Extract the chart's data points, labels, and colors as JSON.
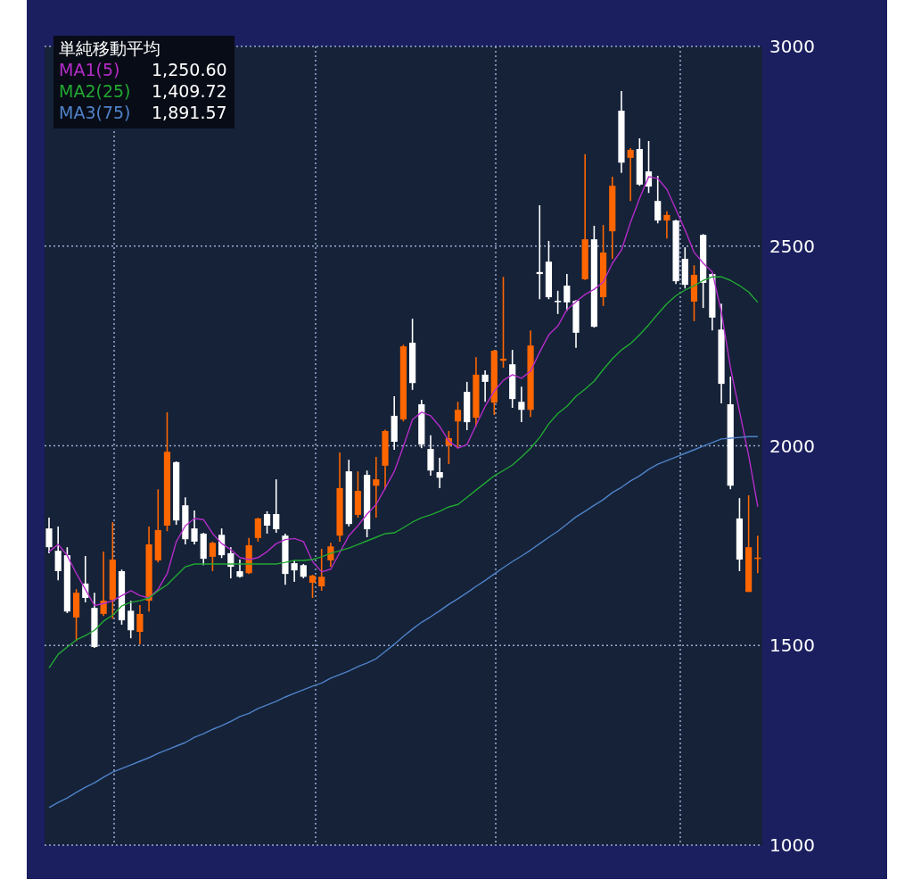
{
  "chart_data": {
    "type": "candlestick",
    "legend_title": "単純移動平均",
    "legend": "top left",
    "grid": true,
    "tick_labels": "y",
    "ylim": [
      1000,
      3000
    ],
    "yticks": [
      1000,
      1500,
      2000,
      2500,
      3000
    ],
    "annotations": [
      "1,250.60",
      "1,409.72",
      "1,891.57"
    ],
    "categories": [
      null,
      null,
      null,
      null,
      null,
      null,
      null,
      null,
      null,
      null,
      null,
      null,
      null,
      null,
      null,
      null,
      null,
      null,
      null,
      null,
      null,
      null,
      null,
      null,
      null,
      null,
      null,
      null,
      null,
      null,
      null,
      null,
      null,
      null,
      null,
      null,
      null,
      null,
      null,
      null,
      null,
      null,
      null,
      null,
      null,
      null,
      null,
      null,
      null,
      null,
      null,
      null,
      null,
      null,
      null,
      null,
      null,
      null,
      null,
      null,
      null,
      null,
      null,
      null,
      null,
      null,
      null,
      null,
      null,
      null,
      null,
      null,
      null,
      null,
      null,
      null,
      null,
      null,
      null
    ],
    "ohlc": [
      [
        1793,
        1820,
        1731,
        1746
      ],
      [
        1737,
        1798,
        1663,
        1686
      ],
      [
        1726,
        1746,
        1581,
        1585
      ],
      [
        1570,
        1641,
        1511,
        1632
      ],
      [
        1655,
        1724,
        1608,
        1619
      ],
      [
        1594,
        1632,
        1494,
        1496
      ],
      [
        1579,
        1735,
        1574,
        1612
      ],
      [
        1614,
        1809,
        1567,
        1715
      ],
      [
        1686,
        1690,
        1552,
        1563
      ],
      [
        1587,
        1612,
        1518,
        1538
      ],
      [
        1534,
        1601,
        1503,
        1579
      ],
      [
        1612,
        1798,
        1585,
        1753
      ],
      [
        1713,
        1891,
        1708,
        1789
      ],
      [
        1800,
        2084,
        1786,
        1985
      ],
      [
        1959,
        1961,
        1802,
        1813
      ],
      [
        1851,
        1871,
        1753,
        1766
      ],
      [
        1793,
        1838,
        1753,
        1760
      ],
      [
        1780,
        1782,
        1701,
        1717
      ],
      [
        1722,
        1760,
        1686,
        1757
      ],
      [
        1777,
        1793,
        1719,
        1726
      ],
      [
        1731,
        1746,
        1668,
        1697
      ],
      [
        1686,
        1715,
        1670,
        1672
      ],
      [
        1681,
        1769,
        1679,
        1751
      ],
      [
        1769,
        1820,
        1760,
        1818
      ],
      [
        1829,
        1836,
        1780,
        1800
      ],
      [
        1829,
        1916,
        1782,
        1791
      ],
      [
        1775,
        1780,
        1652,
        1679
      ],
      [
        1706,
        1713,
        1659,
        1688
      ],
      [
        1701,
        1704,
        1668,
        1672
      ],
      [
        1657,
        1677,
        1619,
        1675
      ],
      [
        1648,
        1742,
        1637,
        1672
      ],
      [
        1713,
        1757,
        1697,
        1748
      ],
      [
        1775,
        1983,
        1760,
        1894
      ],
      [
        1936,
        1965,
        1798,
        1804
      ],
      [
        1827,
        1936,
        1820,
        1887
      ],
      [
        1927,
        1938,
        1771,
        1791
      ],
      [
        1900,
        1972,
        1820,
        1916
      ],
      [
        1950,
        2040,
        1891,
        2037
      ],
      [
        2075,
        2124,
        1990,
        2010
      ],
      [
        2066,
        2253,
        2061,
        2249
      ],
      [
        2258,
        2318,
        2140,
        2157
      ],
      [
        2104,
        2115,
        1994,
        2003
      ],
      [
        1992,
        2026,
        1925,
        1938
      ],
      [
        1934,
        1970,
        1894,
        1920
      ],
      [
        2001,
        2037,
        1954,
        2019
      ],
      [
        2061,
        2110,
        1994,
        2090
      ],
      [
        2135,
        2160,
        2039,
        2059
      ],
      [
        2070,
        2222,
        2048,
        2178
      ],
      [
        2178,
        2189,
        2110,
        2160
      ],
      [
        2108,
        2240,
        2077,
        2238
      ],
      [
        2213,
        2423,
        2195,
        2218
      ],
      [
        2204,
        2240,
        2095,
        2117
      ],
      [
        2110,
        2148,
        2059,
        2090
      ],
      [
        2090,
        2289,
        2072,
        2251
      ],
      [
        2435,
        2602,
        2367,
        2430
      ],
      [
        2461,
        2513,
        2367,
        2372
      ],
      [
        2363,
        2388,
        2330,
        2361
      ],
      [
        2401,
        2430,
        2338,
        2359
      ],
      [
        2363,
        2365,
        2245,
        2283
      ],
      [
        2417,
        2730,
        2415,
        2517
      ],
      [
        2517,
        2551,
        2296,
        2298
      ],
      [
        2372,
        2553,
        2350,
        2484
      ],
      [
        2537,
        2674,
        2468,
        2651
      ],
      [
        2839,
        2888,
        2683,
        2709
      ],
      [
        2721,
        2745,
        2613,
        2741
      ],
      [
        2743,
        2770,
        2651,
        2654
      ],
      [
        2687,
        2763,
        2633,
        2649
      ],
      [
        2613,
        2676,
        2557,
        2564
      ],
      [
        2564,
        2587,
        2519,
        2578
      ],
      [
        2564,
        2566,
        2405,
        2412
      ],
      [
        2468,
        2497,
        2394,
        2403
      ],
      [
        2361,
        2452,
        2312,
        2428
      ],
      [
        2528,
        2530,
        2345,
        2408
      ],
      [
        2430,
        2432,
        2289,
        2321
      ],
      [
        2291,
        2356,
        2106,
        2155
      ],
      [
        2104,
        2173,
        1891,
        1900
      ],
      [
        1818,
        1869,
        1686,
        1715
      ],
      [
        1634,
        1876,
        1634,
        1746
      ],
      [
        1717,
        1775,
        1681,
        1720
      ]
    ],
    "colors": [
      "#ffffff",
      "#ffffff",
      "#ffffff",
      "#ff6600",
      "#ffffff",
      "#ffffff",
      "#ff6600",
      "#ff6600",
      "#ffffff",
      "#ffffff",
      "#ff6600",
      "#ff6600",
      "#ff6600",
      "#ff6600",
      "#ffffff",
      "#ffffff",
      "#ffffff",
      "#ffffff",
      "#ff6600",
      "#ffffff",
      "#ffffff",
      "#ffffff",
      "#ff6600",
      "#ff6600",
      "#ffffff",
      "#ffffff",
      "#ffffff",
      "#ffffff",
      "#ffffff",
      "#ff6600",
      "#ff6600",
      "#ff6600",
      "#ff6600",
      "#ffffff",
      "#ff6600",
      "#ffffff",
      "#ff6600",
      "#ff6600",
      "#ffffff",
      "#ff6600",
      "#ffffff",
      "#ffffff",
      "#ffffff",
      "#ffffff",
      "#ff6600",
      "#ff6600",
      "#ffffff",
      "#ff6600",
      "#ffffff",
      "#ff6600",
      "#ff6600",
      "#ffffff",
      "#ffffff",
      "#ff6600",
      "#ffffff",
      "#ffffff",
      "#ffffff",
      "#ffffff",
      "#ffffff",
      "#ff6600",
      "#ffffff",
      "#ff6600",
      "#ff6600",
      "#ffffff",
      "#ff6600",
      "#ffffff",
      "#ffffff",
      "#ffffff",
      "#ff6600",
      "#ffffff",
      "#ffffff",
      "#ff6600",
      "#ffffff",
      "#ffffff",
      "#ffffff",
      "#ffffff",
      "#ffffff",
      "#ff6600",
      "#ff6600"
    ],
    "series": [
      {
        "name": "MA1(5)",
        "type": "line",
        "color": "#b42cc8",
        "values": [
          1735,
          1753,
          1725,
          1680,
          1640,
          1600,
          1605,
          1612,
          1625,
          1637,
          1625,
          1619,
          1641,
          1680,
          1760,
          1800,
          1818,
          1815,
          1780,
          1755,
          1740,
          1720,
          1715,
          1720,
          1735,
          1755,
          1765,
          1768,
          1760,
          1710,
          1684,
          1691,
          1733,
          1775,
          1800,
          1829,
          1853,
          1894,
          1936,
          1999,
          2066,
          2084,
          2075,
          2048,
          2012,
          1994,
          2003,
          2052,
          2099,
          2137,
          2164,
          2178,
          2169,
          2187,
          2235,
          2278,
          2300,
          2341,
          2361,
          2379,
          2392,
          2410,
          2457,
          2490,
          2560,
          2620,
          2674,
          2669,
          2642,
          2591,
          2540,
          2484,
          2457,
          2435,
          2334,
          2195,
          2085,
          1975,
          1847
        ]
      },
      {
        "name": "MA2(25)",
        "type": "line",
        "color": "#22a832",
        "values": [
          1444,
          1478,
          1496,
          1514,
          1525,
          1538,
          1561,
          1576,
          1599,
          1608,
          1612,
          1619,
          1637,
          1652,
          1675,
          1697,
          1704,
          1704,
          1704,
          1704,
          1704,
          1704,
          1704,
          1704,
          1704,
          1704,
          1708,
          1713,
          1713,
          1715,
          1722,
          1731,
          1737,
          1744,
          1753,
          1762,
          1771,
          1780,
          1782,
          1795,
          1809,
          1820,
          1827,
          1836,
          1847,
          1853,
          1871,
          1889,
          1907,
          1925,
          1938,
          1952,
          1972,
          1994,
          2021,
          2055,
          2081,
          2099,
          2124,
          2142,
          2162,
          2191,
          2218,
          2240,
          2256,
          2278,
          2303,
          2330,
          2356,
          2376,
          2390,
          2401,
          2414,
          2423,
          2423,
          2414,
          2401,
          2385,
          2359
        ]
      },
      {
        "name": "MA3(75)",
        "type": "line",
        "color": "#4f82c8",
        "values": [
          1094,
          1107,
          1118,
          1132,
          1145,
          1156,
          1170,
          1183,
          1192,
          1201,
          1210,
          1219,
          1230,
          1239,
          1248,
          1257,
          1270,
          1279,
          1290,
          1299,
          1310,
          1322,
          1330,
          1342,
          1351,
          1360,
          1371,
          1380,
          1389,
          1398,
          1406,
          1418,
          1427,
          1436,
          1447,
          1456,
          1467,
          1485,
          1503,
          1523,
          1541,
          1558,
          1572,
          1587,
          1603,
          1617,
          1632,
          1648,
          1663,
          1679,
          1695,
          1710,
          1724,
          1739,
          1755,
          1771,
          1786,
          1804,
          1822,
          1836,
          1851,
          1865,
          1883,
          1896,
          1912,
          1925,
          1941,
          1954,
          1963,
          1972,
          1981,
          1990,
          1999,
          2008,
          2017,
          2019,
          2021,
          2023,
          2023
        ]
      }
    ]
  }
}
